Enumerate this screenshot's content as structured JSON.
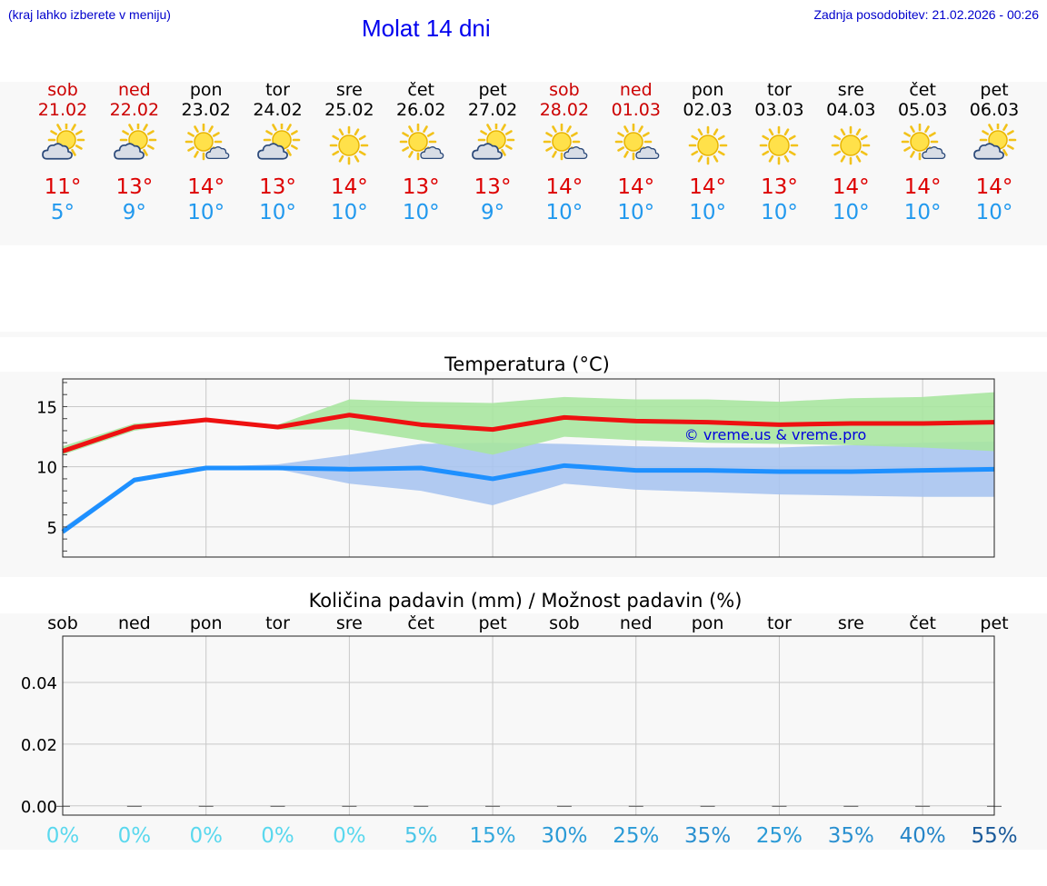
{
  "header": {
    "left_note": "(kraj lahko izberete v meniju)",
    "title": "Molat 14 dni",
    "updated": "Zadnja posodobitev: 21.02.2026 - 00:26"
  },
  "colors": {
    "weekend": "#cc0000",
    "weekday": "#000000",
    "max_temp": "#dd0000",
    "min_temp": "#2299ee",
    "max_line": "#ee1111",
    "min_line": "#1e90ff",
    "max_band": "#a8e6a0",
    "min_band": "#a8c4f0"
  },
  "days": [
    {
      "name": "sob",
      "date": "21.02",
      "weekend": true,
      "icon": "sun-cloud-icon",
      "tmax": "11°",
      "tmin": "5°"
    },
    {
      "name": "ned",
      "date": "22.02",
      "weekend": true,
      "icon": "sun-cloud-icon",
      "tmax": "13°",
      "tmin": "9°"
    },
    {
      "name": "pon",
      "date": "23.02",
      "weekend": false,
      "icon": "sun-small-cloud-icon",
      "tmax": "14°",
      "tmin": "10°"
    },
    {
      "name": "tor",
      "date": "24.02",
      "weekend": false,
      "icon": "sun-cloud-icon",
      "tmax": "13°",
      "tmin": "10°"
    },
    {
      "name": "sre",
      "date": "25.02",
      "weekend": false,
      "icon": "sun-icon",
      "tmax": "14°",
      "tmin": "10°"
    },
    {
      "name": "čet",
      "date": "26.02",
      "weekend": false,
      "icon": "sun-small-cloud-icon",
      "tmax": "13°",
      "tmin": "10°"
    },
    {
      "name": "pet",
      "date": "27.02",
      "weekend": false,
      "icon": "sun-cloud-icon",
      "tmax": "13°",
      "tmin": "9°"
    },
    {
      "name": "sob",
      "date": "28.02",
      "weekend": true,
      "icon": "sun-small-cloud-icon",
      "tmax": "14°",
      "tmin": "10°"
    },
    {
      "name": "ned",
      "date": "01.03",
      "weekend": true,
      "icon": "sun-small-cloud-icon",
      "tmax": "14°",
      "tmin": "10°"
    },
    {
      "name": "pon",
      "date": "02.03",
      "weekend": false,
      "icon": "sun-icon",
      "tmax": "14°",
      "tmin": "10°"
    },
    {
      "name": "tor",
      "date": "03.03",
      "weekend": false,
      "icon": "sun-icon",
      "tmax": "13°",
      "tmin": "10°"
    },
    {
      "name": "sre",
      "date": "04.03",
      "weekend": false,
      "icon": "sun-icon",
      "tmax": "14°",
      "tmin": "10°"
    },
    {
      "name": "čet",
      "date": "05.03",
      "weekend": false,
      "icon": "sun-small-cloud-icon",
      "tmax": "14°",
      "tmin": "10°"
    },
    {
      "name": "pet",
      "date": "06.03",
      "weekend": false,
      "icon": "sun-cloud-icon",
      "tmax": "14°",
      "tmin": "10°"
    }
  ],
  "chart_data": [
    {
      "type": "line",
      "title": "Temperatura (°C)",
      "x": [
        0,
        1,
        2,
        3,
        4,
        5,
        6,
        7,
        8,
        9,
        10,
        11,
        12,
        13
      ],
      "ylim": [
        2.5,
        17.3
      ],
      "yticks": [
        5,
        10,
        15
      ],
      "grid": true,
      "watermark": "© vreme.us & vreme.pro",
      "series": [
        {
          "name": "max",
          "values": [
            11.3,
            13.3,
            13.9,
            13.3,
            14.3,
            13.5,
            13.1,
            14.1,
            13.8,
            13.7,
            13.5,
            13.6,
            13.6,
            13.7
          ],
          "band_low": [
            11.0,
            13.0,
            13.9,
            13.1,
            13.1,
            12.2,
            11.0,
            12.5,
            12.2,
            12.0,
            11.9,
            11.8,
            11.6,
            11.3
          ],
          "band_high": [
            11.7,
            13.6,
            14.0,
            13.5,
            15.6,
            15.4,
            15.3,
            15.8,
            15.6,
            15.6,
            15.4,
            15.7,
            15.8,
            16.2
          ]
        },
        {
          "name": "min",
          "values": [
            4.6,
            8.9,
            9.9,
            9.9,
            9.8,
            9.9,
            9.0,
            10.1,
            9.7,
            9.7,
            9.6,
            9.6,
            9.7,
            9.8
          ],
          "band_low": [
            4.4,
            8.7,
            9.9,
            9.8,
            8.6,
            8.0,
            6.8,
            8.6,
            8.1,
            7.9,
            7.7,
            7.6,
            7.5,
            7.5
          ],
          "band_high": [
            4.9,
            9.1,
            10.0,
            10.2,
            11.0,
            11.9,
            12.0,
            11.9,
            11.7,
            11.6,
            11.6,
            11.8,
            12.0,
            12.1
          ]
        }
      ]
    },
    {
      "type": "bar",
      "title": "Količina padavin (mm) / Možnost padavin (%)",
      "categories": [
        "sob",
        "ned",
        "pon",
        "tor",
        "sre",
        "čet",
        "pet",
        "sob",
        "ned",
        "pon",
        "tor",
        "sre",
        "čet",
        "pet"
      ],
      "values": [
        0,
        0,
        0,
        0,
        0,
        0,
        0,
        0,
        0,
        0,
        0,
        0,
        0,
        0
      ],
      "ylim": [
        -0.003,
        0.055
      ],
      "yticks": [
        0.0,
        0.02,
        0.04
      ],
      "ytick_labels": [
        "0.00",
        "0.02",
        "0.04"
      ],
      "grid": true,
      "probability_labels": [
        "0%",
        "0%",
        "0%",
        "0%",
        "0%",
        "5%",
        "15%",
        "30%",
        "25%",
        "35%",
        "25%",
        "35%",
        "40%",
        "55%"
      ],
      "probability_values": [
        0,
        0,
        0,
        0,
        0,
        5,
        15,
        30,
        25,
        35,
        25,
        35,
        40,
        55
      ],
      "probability_colors": [
        "#5ad8ee",
        "#5ad8ee",
        "#5ad8ee",
        "#5ad8ee",
        "#5ad8ee",
        "#4ac6e8",
        "#33a8dd",
        "#2a9ad6",
        "#2a9ad6",
        "#2a90d0",
        "#2a9ad6",
        "#2a90d0",
        "#2585c8",
        "#1a5a9a"
      ]
    }
  ]
}
